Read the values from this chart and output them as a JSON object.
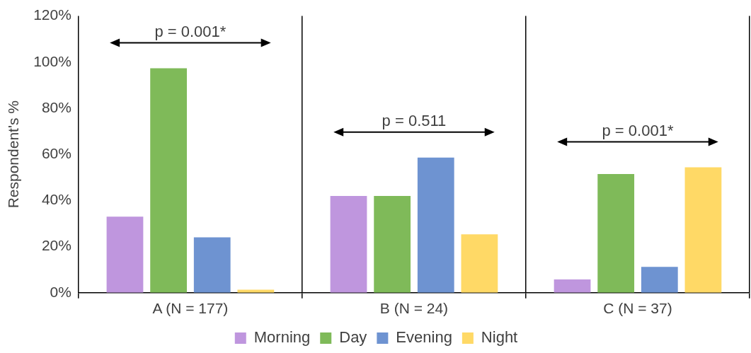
{
  "chart_data": {
    "type": "bar",
    "ylabel": "Respondent's %",
    "categories": [
      "A (N = 177)",
      "B (N = 24)",
      "C (N = 37)"
    ],
    "series": [
      {
        "name": "Morning",
        "color": "#bf96de",
        "values": [
          33,
          42,
          5.8
        ]
      },
      {
        "name": "Day",
        "color": "#7fba59",
        "values": [
          97.3,
          42,
          51.5
        ]
      },
      {
        "name": "Evening",
        "color": "#6e93d1",
        "values": [
          24,
          58.6,
          11.2
        ]
      },
      {
        "name": "Night",
        "color": "#ffd966",
        "values": [
          1.3,
          25.3,
          54.4
        ]
      }
    ],
    "ylim": [
      0,
      120
    ],
    "yticks": [
      {
        "value": 0,
        "label": "0%"
      },
      {
        "value": 20,
        "label": "20%"
      },
      {
        "value": 40,
        "label": "40%"
      },
      {
        "value": 60,
        "label": "60%"
      },
      {
        "value": 80,
        "label": "80%"
      },
      {
        "value": 100,
        "label": "100%"
      },
      {
        "value": 120,
        "label": "120%"
      }
    ],
    "annotations": [
      "p = 0.001*",
      "p = 0.511",
      "p = 0.001*"
    ],
    "grid": "x",
    "legend": "bottom"
  }
}
